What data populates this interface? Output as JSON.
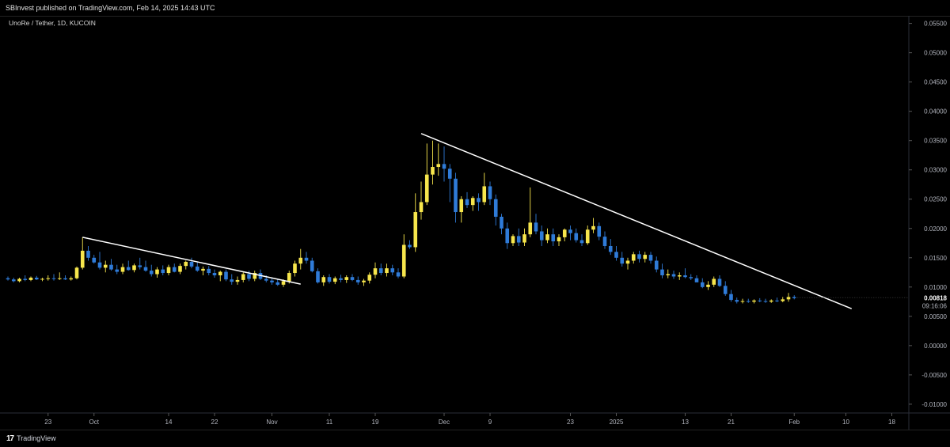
{
  "header": {
    "published": "SBInvest published on TradingView.com, Feb 14, 2025 14:43 UTC"
  },
  "symbol": {
    "label": "UnoRe / Tether, 1D, KUCOIN"
  },
  "price_axis": {
    "ticks": [
      "0.05500",
      "0.05000",
      "0.04500",
      "0.04000",
      "0.03500",
      "0.03000",
      "0.02500",
      "0.02000",
      "0.01500",
      "0.01000",
      "0.00500",
      "0.00000",
      "-0.00500",
      "-0.01000"
    ],
    "current_price": "0.00818",
    "countdown": "09:16:06"
  },
  "time_axis": {
    "ticks": [
      "23",
      "Oct",
      "14",
      "22",
      "Nov",
      "11",
      "19",
      "Dec",
      "9",
      "23",
      "2025",
      "13",
      "21",
      "Feb",
      "10",
      "18"
    ]
  },
  "footer": {
    "brand": "TradingView"
  },
  "colors": {
    "up": "#f7e64c",
    "down": "#2f7bd8",
    "background": "#000000",
    "trendline": "#ffffff"
  },
  "chart_data": {
    "type": "candlestick",
    "symbol": "UnoRe / Tether",
    "interval": "1D",
    "exchange": "KUCOIN",
    "ylim": [
      -0.0115,
      0.0563
    ],
    "x_ticks": [
      {
        "label": "23",
        "index": 7
      },
      {
        "label": "Oct",
        "index": 15
      },
      {
        "label": "14",
        "index": 28
      },
      {
        "label": "22",
        "index": 36
      },
      {
        "label": "Nov",
        "index": 46
      },
      {
        "label": "11",
        "index": 56
      },
      {
        "label": "19",
        "index": 64
      },
      {
        "label": "Dec",
        "index": 76
      },
      {
        "label": "9",
        "index": 84
      },
      {
        "label": "23",
        "index": 98
      },
      {
        "label": "2025",
        "index": 106
      },
      {
        "label": "13",
        "index": 118
      },
      {
        "label": "21",
        "index": 126
      },
      {
        "label": "Feb",
        "index": 137
      },
      {
        "label": "10",
        "index": 146
      },
      {
        "label": "18",
        "index": 154
      }
    ],
    "candles_ohlc": [
      [
        0.0115,
        0.0118,
        0.0111,
        0.0113
      ],
      [
        0.0113,
        0.0116,
        0.0108,
        0.011
      ],
      [
        0.011,
        0.0116,
        0.0108,
        0.0114
      ],
      [
        0.0114,
        0.012,
        0.011,
        0.0112
      ],
      [
        0.0112,
        0.0118,
        0.011,
        0.0116
      ],
      [
        0.0116,
        0.0119,
        0.0112,
        0.0113
      ],
      [
        0.0113,
        0.0116,
        0.011,
        0.0114
      ],
      [
        0.0114,
        0.012,
        0.0111,
        0.0115
      ],
      [
        0.0115,
        0.0122,
        0.0111,
        0.0114
      ],
      [
        0.0114,
        0.0125,
        0.0112,
        0.0115
      ],
      [
        0.0115,
        0.012,
        0.0112,
        0.0113
      ],
      [
        0.0113,
        0.0118,
        0.0111,
        0.0115
      ],
      [
        0.0115,
        0.0135,
        0.0113,
        0.0133
      ],
      [
        0.0133,
        0.0185,
        0.013,
        0.0162
      ],
      [
        0.0162,
        0.017,
        0.0145,
        0.015
      ],
      [
        0.015,
        0.0155,
        0.014,
        0.0142
      ],
      [
        0.0142,
        0.016,
        0.013,
        0.0133
      ],
      [
        0.0133,
        0.0145,
        0.0125,
        0.0138
      ],
      [
        0.0138,
        0.0148,
        0.0128,
        0.013
      ],
      [
        0.013,
        0.0138,
        0.0122,
        0.0126
      ],
      [
        0.0126,
        0.014,
        0.0122,
        0.0134
      ],
      [
        0.0134,
        0.0145,
        0.0128,
        0.0129
      ],
      [
        0.0129,
        0.014,
        0.0125,
        0.0137
      ],
      [
        0.0137,
        0.015,
        0.013,
        0.0134
      ],
      [
        0.0134,
        0.0145,
        0.0126,
        0.0128
      ],
      [
        0.0128,
        0.0138,
        0.0118,
        0.0122
      ],
      [
        0.0122,
        0.0134,
        0.0116,
        0.013
      ],
      [
        0.013,
        0.0137,
        0.012,
        0.0124
      ],
      [
        0.0124,
        0.0138,
        0.012,
        0.0134
      ],
      [
        0.0134,
        0.014,
        0.0125,
        0.0126
      ],
      [
        0.0126,
        0.014,
        0.0122,
        0.0136
      ],
      [
        0.0136,
        0.0145,
        0.013,
        0.0143
      ],
      [
        0.0143,
        0.015,
        0.0132,
        0.0135
      ],
      [
        0.0135,
        0.0142,
        0.0126,
        0.0128
      ],
      [
        0.0128,
        0.0135,
        0.012,
        0.0131
      ],
      [
        0.0131,
        0.0136,
        0.012,
        0.0124
      ],
      [
        0.0124,
        0.013,
        0.0116,
        0.012
      ],
      [
        0.012,
        0.0128,
        0.011,
        0.0126
      ],
      [
        0.0126,
        0.013,
        0.011,
        0.0113
      ],
      [
        0.0113,
        0.0122,
        0.0104,
        0.0109
      ],
      [
        0.0109,
        0.0118,
        0.0104,
        0.0112
      ],
      [
        0.0112,
        0.0125,
        0.0108,
        0.0122
      ],
      [
        0.0122,
        0.0128,
        0.011,
        0.0114
      ],
      [
        0.0114,
        0.0128,
        0.011,
        0.0124
      ],
      [
        0.0124,
        0.013,
        0.0112,
        0.0114
      ],
      [
        0.0114,
        0.012,
        0.0108,
        0.0111
      ],
      [
        0.0111,
        0.0116,
        0.0104,
        0.0108
      ],
      [
        0.0108,
        0.0114,
        0.0102,
        0.0104
      ],
      [
        0.0104,
        0.0113,
        0.01,
        0.011
      ],
      [
        0.011,
        0.0128,
        0.0106,
        0.0124
      ],
      [
        0.0124,
        0.0145,
        0.0118,
        0.014
      ],
      [
        0.014,
        0.0165,
        0.013,
        0.015
      ],
      [
        0.015,
        0.016,
        0.014,
        0.0145
      ],
      [
        0.0145,
        0.015,
        0.0125,
        0.0127
      ],
      [
        0.0127,
        0.0132,
        0.0106,
        0.0108
      ],
      [
        0.0108,
        0.012,
        0.0102,
        0.0117
      ],
      [
        0.0117,
        0.0122,
        0.0106,
        0.0109
      ],
      [
        0.0109,
        0.0118,
        0.0105,
        0.0115
      ],
      [
        0.0115,
        0.0121,
        0.0108,
        0.0112
      ],
      [
        0.0112,
        0.012,
        0.0107,
        0.0117
      ],
      [
        0.0117,
        0.0122,
        0.011,
        0.0112
      ],
      [
        0.0112,
        0.0118,
        0.0104,
        0.0108
      ],
      [
        0.0108,
        0.0114,
        0.0102,
        0.0111
      ],
      [
        0.0111,
        0.0125,
        0.0106,
        0.0121
      ],
      [
        0.0121,
        0.0142,
        0.0115,
        0.0132
      ],
      [
        0.0132,
        0.014,
        0.012,
        0.0124
      ],
      [
        0.0124,
        0.014,
        0.0118,
        0.0132
      ],
      [
        0.0132,
        0.0138,
        0.012,
        0.0125
      ],
      [
        0.0125,
        0.0132,
        0.0115,
        0.0118
      ],
      [
        0.0118,
        0.019,
        0.0115,
        0.0172
      ],
      [
        0.0172,
        0.018,
        0.0165,
        0.0168
      ],
      [
        0.0168,
        0.026,
        0.016,
        0.0228
      ],
      [
        0.0228,
        0.028,
        0.0215,
        0.0245
      ],
      [
        0.0245,
        0.0345,
        0.024,
        0.0292
      ],
      [
        0.0292,
        0.035,
        0.0275,
        0.0305
      ],
      [
        0.0305,
        0.0345,
        0.029,
        0.031
      ],
      [
        0.031,
        0.034,
        0.028,
        0.0302
      ],
      [
        0.0302,
        0.031,
        0.0245,
        0.0285
      ],
      [
        0.0285,
        0.0295,
        0.021,
        0.0228
      ],
      [
        0.0228,
        0.0255,
        0.021,
        0.025
      ],
      [
        0.025,
        0.0262,
        0.0235,
        0.024
      ],
      [
        0.024,
        0.0255,
        0.023,
        0.0252
      ],
      [
        0.0252,
        0.026,
        0.023,
        0.0245
      ],
      [
        0.0245,
        0.0295,
        0.024,
        0.0272
      ],
      [
        0.0272,
        0.028,
        0.024,
        0.025
      ],
      [
        0.025,
        0.0258,
        0.0205,
        0.022
      ],
      [
        0.022,
        0.0225,
        0.019,
        0.02
      ],
      [
        0.02,
        0.021,
        0.0165,
        0.0175
      ],
      [
        0.0175,
        0.019,
        0.017,
        0.0187
      ],
      [
        0.0187,
        0.02,
        0.017,
        0.0176
      ],
      [
        0.0176,
        0.02,
        0.017,
        0.019
      ],
      [
        0.019,
        0.027,
        0.0185,
        0.021
      ],
      [
        0.021,
        0.0225,
        0.019,
        0.0195
      ],
      [
        0.0195,
        0.0205,
        0.017,
        0.018
      ],
      [
        0.018,
        0.02,
        0.0175,
        0.019
      ],
      [
        0.019,
        0.02,
        0.017,
        0.0178
      ],
      [
        0.0178,
        0.019,
        0.017,
        0.0185
      ],
      [
        0.0185,
        0.02,
        0.0178,
        0.0198
      ],
      [
        0.0198,
        0.0205,
        0.018,
        0.0192
      ],
      [
        0.0192,
        0.02,
        0.0176,
        0.018
      ],
      [
        0.018,
        0.019,
        0.017,
        0.0175
      ],
      [
        0.0175,
        0.0205,
        0.0172,
        0.0198
      ],
      [
        0.0198,
        0.0218,
        0.0192,
        0.0204
      ],
      [
        0.0204,
        0.021,
        0.018,
        0.0186
      ],
      [
        0.0186,
        0.0195,
        0.0165,
        0.017
      ],
      [
        0.017,
        0.0182,
        0.0155,
        0.016
      ],
      [
        0.016,
        0.017,
        0.0145,
        0.015
      ],
      [
        0.015,
        0.016,
        0.0135,
        0.014
      ],
      [
        0.014,
        0.015,
        0.013,
        0.0145
      ],
      [
        0.0145,
        0.016,
        0.014,
        0.0156
      ],
      [
        0.0156,
        0.0162,
        0.0142,
        0.0148
      ],
      [
        0.0148,
        0.016,
        0.0142,
        0.0155
      ],
      [
        0.0155,
        0.016,
        0.014,
        0.0145
      ],
      [
        0.0145,
        0.0152,
        0.0125,
        0.013
      ],
      [
        0.013,
        0.014,
        0.0115,
        0.012
      ],
      [
        0.012,
        0.013,
        0.0115,
        0.0122
      ],
      [
        0.0122,
        0.0128,
        0.0114,
        0.0118
      ],
      [
        0.0118,
        0.0125,
        0.0112,
        0.012
      ],
      [
        0.012,
        0.0132,
        0.0115,
        0.0117
      ],
      [
        0.0117,
        0.0122,
        0.0112,
        0.0115
      ],
      [
        0.0115,
        0.012,
        0.011,
        0.0108
      ],
      [
        0.0108,
        0.0115,
        0.0098,
        0.01
      ],
      [
        0.01,
        0.011,
        0.0095,
        0.0104
      ],
      [
        0.0104,
        0.0118,
        0.01,
        0.0114
      ],
      [
        0.0114,
        0.012,
        0.01,
        0.0102
      ],
      [
        0.0102,
        0.011,
        0.0085,
        0.0088
      ],
      [
        0.0088,
        0.0095,
        0.0075,
        0.0078
      ],
      [
        0.0078,
        0.0082,
        0.0072,
        0.0075
      ],
      [
        0.0075,
        0.008,
        0.0072,
        0.0076
      ],
      [
        0.0076,
        0.008,
        0.0073,
        0.0075
      ],
      [
        0.0075,
        0.0079,
        0.0072,
        0.0077
      ],
      [
        0.0077,
        0.0081,
        0.0074,
        0.0076
      ],
      [
        0.0076,
        0.008,
        0.0073,
        0.0075
      ],
      [
        0.0075,
        0.0079,
        0.0073,
        0.0077
      ],
      [
        0.0077,
        0.0082,
        0.0074,
        0.0076
      ],
      [
        0.0076,
        0.0083,
        0.0074,
        0.0079
      ],
      [
        0.0079,
        0.009,
        0.0075,
        0.0083
      ],
      [
        0.0083,
        0.0086,
        0.0079,
        0.0081
      ]
    ],
    "trendlines": [
      {
        "from": [
          13,
          0.0185
        ],
        "to": [
          51,
          0.0105
        ]
      },
      {
        "from": [
          72,
          0.0362
        ],
        "to": [
          147,
          0.0063
        ]
      }
    ]
  }
}
